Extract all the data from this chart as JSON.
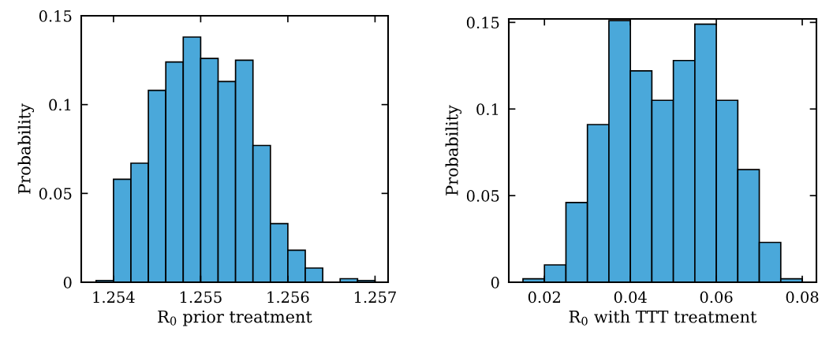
{
  "chart_data": [
    {
      "type": "histogram",
      "xlabel": "R$_{0}$ prior treatment",
      "ylabel": "Probability",
      "color": "#4aa8da",
      "bins": [
        1.2538,
        1.254,
        1.2542,
        1.2544,
        1.2546,
        1.2548,
        1.255,
        1.2552,
        1.2554,
        1.2556,
        1.2558,
        1.256,
        1.2562,
        1.2564,
        1.2566,
        1.2568,
        1.257
      ],
      "values": [
        0.001,
        0.058,
        0.067,
        0.108,
        0.124,
        0.138,
        0.126,
        0.113,
        0.125,
        0.077,
        0.033,
        0.018,
        0.008,
        null,
        0.002,
        0.001
      ],
      "xlim": [
        1.25363,
        1.25715
      ],
      "xticks": [
        1.254,
        1.255,
        1.256,
        1.257
      ],
      "ylim": [
        0,
        0.15
      ],
      "yticks": [
        0,
        0.05,
        0.1,
        0.15
      ],
      "grid": false
    },
    {
      "type": "histogram",
      "xlabel": "R$_{0}$ with TTT treatment",
      "ylabel": "Probability",
      "color": "#4aa8da",
      "bins": [
        0.015,
        0.02,
        0.025,
        0.03,
        0.035,
        0.04,
        0.045,
        0.05,
        0.055,
        0.06,
        0.065,
        0.07,
        0.075,
        0.08
      ],
      "values": [
        0.002,
        0.01,
        0.046,
        0.091,
        0.151,
        0.122,
        0.105,
        0.128,
        0.149,
        0.105,
        0.065,
        0.023,
        0.002
      ],
      "xlim": [
        0.0117,
        0.0833
      ],
      "xticks": [
        0.02,
        0.04,
        0.06,
        0.08
      ],
      "ylim": [
        0,
        0.152
      ],
      "yticks": [
        0,
        0.05,
        0.1,
        0.15
      ],
      "grid": false
    }
  ]
}
